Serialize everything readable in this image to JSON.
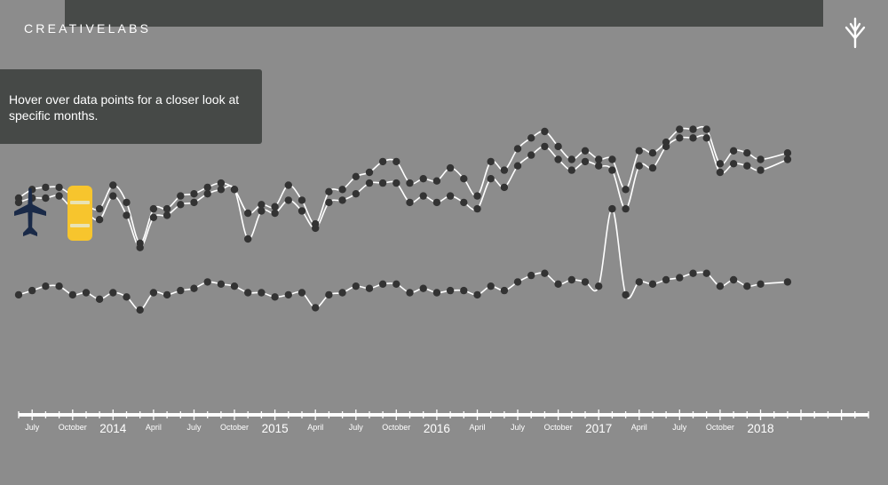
{
  "header": {
    "brand": "CREATIVELABS",
    "brand_icon": "tree-logo-icon"
  },
  "tooltip": {
    "text": "Hover over data points for a closer look at specific months."
  },
  "chart_data": {
    "type": "line",
    "title": "",
    "xlabel": "",
    "ylabel": "",
    "x_start": "2013-06",
    "x_end": "2018-09",
    "x_ticks": [
      {
        "date": "2013-07",
        "label": "July",
        "major": false
      },
      {
        "date": "2013-10",
        "label": "October",
        "major": false
      },
      {
        "date": "2014-01",
        "label": "2014",
        "major": true
      },
      {
        "date": "2014-04",
        "label": "April",
        "major": false
      },
      {
        "date": "2014-07",
        "label": "July",
        "major": false
      },
      {
        "date": "2014-10",
        "label": "October",
        "major": false
      },
      {
        "date": "2015-01",
        "label": "2015",
        "major": true
      },
      {
        "date": "2015-04",
        "label": "April",
        "major": false
      },
      {
        "date": "2015-07",
        "label": "July",
        "major": false
      },
      {
        "date": "2015-10",
        "label": "October",
        "major": false
      },
      {
        "date": "2016-01",
        "label": "2016",
        "major": true
      },
      {
        "date": "2016-04",
        "label": "April",
        "major": false
      },
      {
        "date": "2016-07",
        "label": "July",
        "major": false
      },
      {
        "date": "2016-10",
        "label": "October",
        "major": false
      },
      {
        "date": "2017-01",
        "label": "2017",
        "major": true
      },
      {
        "date": "2017-04",
        "label": "April",
        "major": false
      },
      {
        "date": "2017-07",
        "label": "July",
        "major": false
      },
      {
        "date": "2017-10",
        "label": "October",
        "major": false
      },
      {
        "date": "2018-01",
        "label": "2018",
        "major": true
      }
    ],
    "ylim": [
      0,
      100
    ],
    "grid": false,
    "legend": "none",
    "colors": {
      "line": "#ffffff",
      "point": "#333333",
      "axis": "#ffffff",
      "car_marker": "#f7c52d",
      "plane_marker": "#1a2a48"
    },
    "markers": [
      "airplane-icon",
      "car-icon"
    ],
    "series": [
      {
        "points": [
          [
            "2013-06",
            69
          ],
          [
            "2013-07",
            73
          ],
          [
            "2013-08",
            74
          ],
          [
            "2013-09",
            74
          ],
          [
            "2013-10",
            70
          ],
          [
            "2013-11",
            66
          ],
          [
            "2013-12",
            64
          ],
          [
            "2014-01",
            75
          ],
          [
            "2014-02",
            67
          ],
          [
            "2014-03",
            48
          ],
          [
            "2014-04",
            64
          ],
          [
            "2014-05",
            64
          ],
          [
            "2014-06",
            70
          ],
          [
            "2014-07",
            71
          ],
          [
            "2014-08",
            74
          ],
          [
            "2014-09",
            76
          ],
          [
            "2014-10",
            73
          ],
          [
            "2014-11",
            62
          ],
          [
            "2014-12",
            66
          ],
          [
            "2015-01",
            65
          ],
          [
            "2015-02",
            75
          ],
          [
            "2015-03",
            68
          ],
          [
            "2015-04",
            57
          ],
          [
            "2015-05",
            72
          ],
          [
            "2015-06",
            73
          ],
          [
            "2015-07",
            79
          ],
          [
            "2015-08",
            81
          ],
          [
            "2015-09",
            86
          ],
          [
            "2015-10",
            86
          ],
          [
            "2015-11",
            76
          ],
          [
            "2015-12",
            78
          ],
          [
            "2016-01",
            77
          ],
          [
            "2016-02",
            83
          ],
          [
            "2016-03",
            78
          ],
          [
            "2016-04",
            70
          ],
          [
            "2016-05",
            86
          ],
          [
            "2016-06",
            82
          ],
          [
            "2016-07",
            92
          ],
          [
            "2016-08",
            97
          ],
          [
            "2016-09",
            100
          ],
          [
            "2016-10",
            93
          ],
          [
            "2016-11",
            87
          ],
          [
            "2016-12",
            91
          ],
          [
            "2017-01",
            87
          ],
          [
            "2017-02",
            87
          ],
          [
            "2017-03",
            73
          ],
          [
            "2017-04",
            91
          ],
          [
            "2017-05",
            90
          ],
          [
            "2017-06",
            95
          ],
          [
            "2017-07",
            101
          ],
          [
            "2017-08",
            101
          ],
          [
            "2017-09",
            101
          ],
          [
            "2017-10",
            85
          ],
          [
            "2017-11",
            91
          ],
          [
            "2017-12",
            90
          ],
          [
            "2018-01",
            87
          ],
          [
            "2018-03",
            90
          ]
        ]
      },
      {
        "points": [
          [
            "2013-06",
            67
          ],
          [
            "2013-07",
            69
          ],
          [
            "2013-08",
            69
          ],
          [
            "2013-09",
            70
          ],
          [
            "2013-10",
            64
          ],
          [
            "2013-11",
            62
          ],
          [
            "2013-12",
            59
          ],
          [
            "2014-01",
            70
          ],
          [
            "2014-02",
            61
          ],
          [
            "2014-03",
            46
          ],
          [
            "2014-04",
            60
          ],
          [
            "2014-05",
            61
          ],
          [
            "2014-06",
            66
          ],
          [
            "2014-07",
            67
          ],
          [
            "2014-08",
            71
          ],
          [
            "2014-09",
            73
          ],
          [
            "2014-10",
            73
          ],
          [
            "2014-11",
            50
          ],
          [
            "2014-12",
            63
          ],
          [
            "2015-01",
            62
          ],
          [
            "2015-02",
            68
          ],
          [
            "2015-03",
            63
          ],
          [
            "2015-04",
            55
          ],
          [
            "2015-05",
            67
          ],
          [
            "2015-06",
            68
          ],
          [
            "2015-07",
            71
          ],
          [
            "2015-08",
            76
          ],
          [
            "2015-09",
            76
          ],
          [
            "2015-10",
            76
          ],
          [
            "2015-11",
            67
          ],
          [
            "2015-12",
            70
          ],
          [
            "2016-01",
            67
          ],
          [
            "2016-02",
            70
          ],
          [
            "2016-03",
            67
          ],
          [
            "2016-04",
            64
          ],
          [
            "2016-05",
            78
          ],
          [
            "2016-06",
            74
          ],
          [
            "2016-07",
            84
          ],
          [
            "2016-08",
            89
          ],
          [
            "2016-09",
            93
          ],
          [
            "2016-10",
            87
          ],
          [
            "2016-11",
            82
          ],
          [
            "2016-12",
            86
          ],
          [
            "2017-01",
            84
          ],
          [
            "2017-02",
            82
          ],
          [
            "2017-03",
            64
          ],
          [
            "2017-04",
            84
          ],
          [
            "2017-05",
            83
          ],
          [
            "2017-06",
            93
          ],
          [
            "2017-07",
            97
          ],
          [
            "2017-08",
            97
          ],
          [
            "2017-09",
            97
          ],
          [
            "2017-10",
            81
          ],
          [
            "2017-11",
            85
          ],
          [
            "2017-12",
            84
          ],
          [
            "2018-01",
            82
          ],
          [
            "2018-03",
            87
          ]
        ]
      },
      {
        "points": [
          [
            "2013-06",
            24
          ],
          [
            "2013-07",
            26
          ],
          [
            "2013-08",
            28
          ],
          [
            "2013-09",
            28
          ],
          [
            "2013-10",
            24
          ],
          [
            "2013-11",
            25
          ],
          [
            "2013-12",
            22
          ],
          [
            "2014-01",
            25
          ],
          [
            "2014-02",
            23
          ],
          [
            "2014-03",
            17
          ],
          [
            "2014-04",
            25
          ],
          [
            "2014-05",
            24
          ],
          [
            "2014-06",
            26
          ],
          [
            "2014-07",
            27
          ],
          [
            "2014-08",
            30
          ],
          [
            "2014-09",
            29
          ],
          [
            "2014-10",
            28
          ],
          [
            "2014-11",
            25
          ],
          [
            "2014-12",
            25
          ],
          [
            "2015-01",
            23
          ],
          [
            "2015-02",
            24
          ],
          [
            "2015-03",
            25
          ],
          [
            "2015-04",
            18
          ],
          [
            "2015-05",
            24
          ],
          [
            "2015-06",
            25
          ],
          [
            "2015-07",
            28
          ],
          [
            "2015-08",
            27
          ],
          [
            "2015-09",
            29
          ],
          [
            "2015-10",
            29
          ],
          [
            "2015-11",
            25
          ],
          [
            "2015-12",
            27
          ],
          [
            "2016-01",
            25
          ],
          [
            "2016-02",
            26
          ],
          [
            "2016-03",
            26
          ],
          [
            "2016-04",
            24
          ],
          [
            "2016-05",
            28
          ],
          [
            "2016-06",
            26
          ],
          [
            "2016-07",
            30
          ],
          [
            "2016-08",
            33
          ],
          [
            "2016-09",
            34
          ],
          [
            "2016-10",
            29
          ],
          [
            "2016-11",
            31
          ],
          [
            "2016-12",
            30
          ],
          [
            "2017-01",
            28
          ],
          [
            "2017-02",
            64
          ],
          [
            "2017-03",
            24
          ],
          [
            "2017-04",
            30
          ],
          [
            "2017-05",
            29
          ],
          [
            "2017-06",
            31
          ],
          [
            "2017-07",
            32
          ],
          [
            "2017-08",
            34
          ],
          [
            "2017-09",
            34
          ],
          [
            "2017-10",
            28
          ],
          [
            "2017-11",
            31
          ],
          [
            "2017-12",
            28
          ],
          [
            "2018-01",
            29
          ],
          [
            "2018-03",
            30
          ]
        ]
      }
    ]
  }
}
